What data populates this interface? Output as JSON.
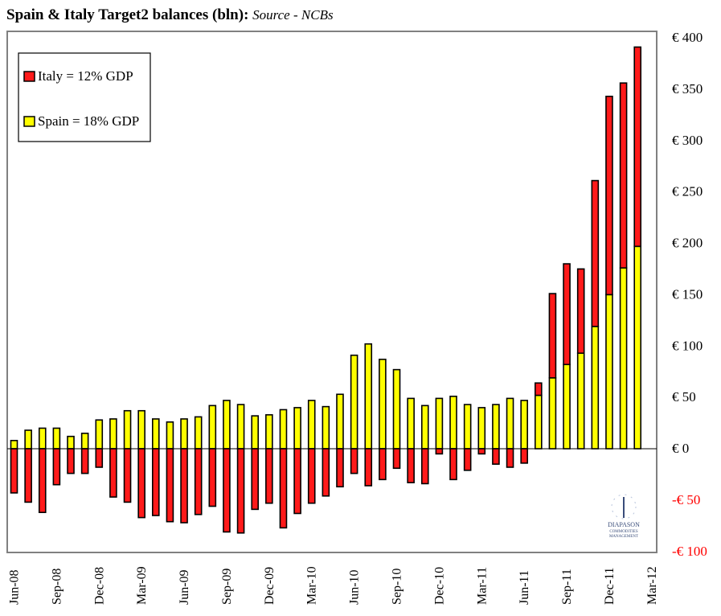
{
  "title": {
    "main": "Spain & Italy Target2 balances (bln):",
    "source": "Source - NCBs"
  },
  "logo": {
    "line1": "DIAPASON",
    "line2": "COMMODITIES",
    "line3": "MANAGEMENT"
  },
  "colors": {
    "italy": "#ff1a1a",
    "spain": "#ffff00",
    "negative_tick": "#ff0000",
    "frame": "#808080"
  },
  "chart_data": {
    "type": "bar",
    "stacked": true,
    "title": "Spain & Italy Target2 balances (bln): Source - NCBs",
    "xlabel": "",
    "ylabel": "",
    "ylim": [
      -100,
      400
    ],
    "yticks": [
      400,
      350,
      300,
      250,
      200,
      150,
      100,
      50,
      0,
      -50,
      -100
    ],
    "ytick_labels": [
      "€ 400",
      "€ 350",
      "€ 300",
      "€ 250",
      "€ 200",
      "€ 150",
      "€ 100",
      "€ 50",
      "€ 0",
      "-€ 50",
      "-€ 100"
    ],
    "xtick_labels": [
      "Jun-08",
      "Sep-08",
      "Dec-08",
      "Mar-09",
      "Jun-09",
      "Sep-09",
      "Dec-09",
      "Mar-10",
      "Jun-10",
      "Sep-10",
      "Dec-10",
      "Mar-11",
      "Jun-11",
      "Sep-11",
      "Dec-11",
      "Mar-12"
    ],
    "legend_position": "top-left",
    "categories": [
      "Jun-08",
      "Jul-08",
      "Aug-08",
      "Sep-08",
      "Oct-08",
      "Nov-08",
      "Dec-08",
      "Jan-09",
      "Feb-09",
      "Mar-09",
      "Apr-09",
      "May-09",
      "Jun-09",
      "Jul-09",
      "Aug-09",
      "Sep-09",
      "Oct-09",
      "Nov-09",
      "Dec-09",
      "Jan-10",
      "Feb-10",
      "Mar-10",
      "Apr-10",
      "May-10",
      "Jun-10",
      "Jul-10",
      "Aug-10",
      "Sep-10",
      "Oct-10",
      "Nov-10",
      "Dec-10",
      "Jan-11",
      "Feb-11",
      "Mar-11",
      "Apr-11",
      "May-11",
      "Jun-11",
      "Jul-11",
      "Aug-11",
      "Sep-11",
      "Oct-11",
      "Nov-11",
      "Dec-11",
      "Jan-12",
      "Feb-12"
    ],
    "series": [
      {
        "name": "Italy = 12% GDP",
        "color": "#ff1a1a",
        "values": [
          -43,
          -52,
          -62,
          -35,
          -24,
          -24,
          -18,
          -47,
          -52,
          -67,
          -65,
          -71,
          -72,
          -64,
          -56,
          -81,
          -82,
          -59,
          -53,
          -77,
          -63,
          -53,
          -46,
          -37,
          -24,
          -36,
          -30,
          -19,
          -33,
          -34,
          -5,
          -30,
          -21,
          -5,
          -15,
          -18,
          -14,
          12,
          82,
          98,
          82,
          142,
          193,
          180,
          194
        ]
      },
      {
        "name": "Spain = 18% GDP",
        "color": "#ffff00",
        "values": [
          8,
          18,
          20,
          20,
          12,
          15,
          28,
          29,
          37,
          37,
          29,
          26,
          29,
          31,
          42,
          47,
          43,
          32,
          33,
          38,
          40,
          47,
          41,
          53,
          91,
          102,
          87,
          77,
          49,
          42,
          49,
          51,
          43,
          40,
          43,
          49,
          47,
          52,
          69,
          82,
          93,
          119,
          150,
          176,
          197
        ]
      }
    ]
  }
}
